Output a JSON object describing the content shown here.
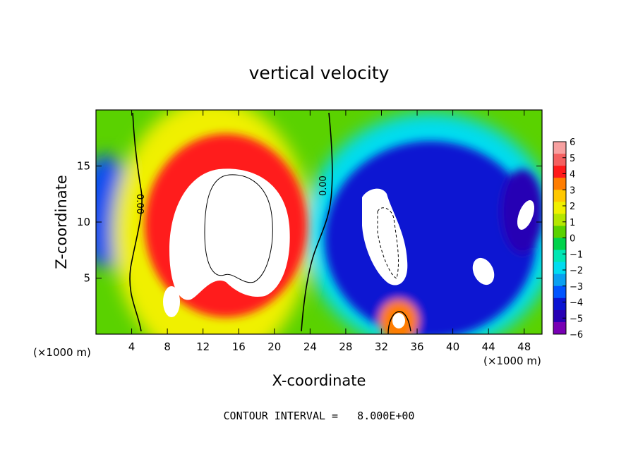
{
  "chart_data": {
    "type": "heatmap",
    "title": "vertical velocity",
    "xlabel": "X-coordinate",
    "ylabel": "Z-coordinate",
    "x_units_left": "(×1000 m)",
    "x_units_right": "(×1000 m)",
    "xlim": [
      0,
      50
    ],
    "ylim": [
      0,
      20
    ],
    "x_ticks": [
      4,
      8,
      12,
      16,
      20,
      24,
      28,
      32,
      36,
      40,
      44,
      48
    ],
    "y_ticks": [
      5,
      10,
      15
    ],
    "colorbar": {
      "ticks": [
        6,
        5,
        4,
        3,
        2,
        1,
        0,
        -1,
        -2,
        -3,
        -4,
        -5,
        -6
      ],
      "tick_labels": [
        "6",
        "5",
        "4",
        "3",
        "2",
        "1",
        "0",
        "−1",
        "−2",
        "−3",
        "−4",
        "−5",
        "−6"
      ],
      "colors": [
        "#f7a0a0",
        "#f46060",
        "#ff1a1a",
        "#ff7d00",
        "#ffc800",
        "#f0f000",
        "#b4e600",
        "#5ad200",
        "#00d24b",
        "#00e6b4",
        "#00dcf0",
        "#0aa0f0",
        "#0055ff",
        "#0a14d2",
        "#2800b4",
        "#7800b4"
      ],
      "vmin": -6,
      "vmax": 6
    },
    "contour_labels": [
      "0.00",
      "0.00"
    ],
    "footer": "CONTOUR INTERVAL =   8.000E+00"
  }
}
